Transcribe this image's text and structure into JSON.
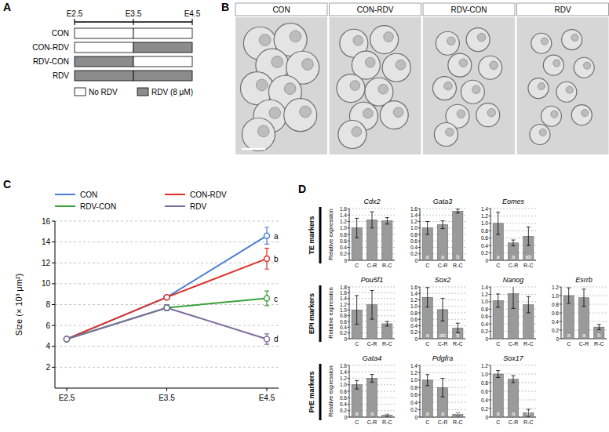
{
  "panel_labels": [
    "A",
    "B",
    "C",
    "D"
  ],
  "schedule": {
    "timepoints": [
      "E2.5",
      "E3.5",
      "E4.5"
    ],
    "rows": [
      {
        "label": "CON",
        "treatment": [
          false,
          false
        ]
      },
      {
        "label": "CON-RDV",
        "treatment": [
          false,
          true
        ]
      },
      {
        "label": "RDV-CON",
        "treatment": [
          true,
          false
        ]
      },
      {
        "label": "RDV",
        "treatment": [
          true,
          true
        ]
      }
    ],
    "legend": {
      "untreated": "No RDV",
      "treated": "RDV (8 μM)"
    }
  },
  "images": {
    "labels": [
      "CON",
      "CON-RDV",
      "RDV-CON",
      "RDV"
    ]
  },
  "chart_data": [
    {
      "type": "line",
      "y_label": "Size (× 10³ μm²)",
      "categories": [
        "E2.5",
        "E3.5",
        "E4.5"
      ],
      "ylim": [
        0,
        16
      ],
      "yticks": [
        2,
        4,
        6,
        8,
        10,
        12,
        14,
        16
      ],
      "grid": true,
      "legend": "top",
      "marker": "circle",
      "series": [
        {
          "name": "CON",
          "color": "#4a7fd4",
          "values": [
            4.7,
            8.7,
            14.6
          ],
          "errors": [
            0,
            0.15,
            0.8
          ],
          "annotations": [
            null,
            null,
            "a"
          ]
        },
        {
          "name": "CON-RDV",
          "color": "#e0302a",
          "values": [
            4.7,
            8.7,
            12.4
          ],
          "errors": [
            0,
            0.15,
            1.0
          ],
          "annotations": [
            null,
            null,
            "b"
          ]
        },
        {
          "name": "RDV-CON",
          "color": "#3aa33a",
          "values": [
            4.7,
            7.7,
            8.6
          ],
          "errors": [
            0,
            0.3,
            0.7
          ],
          "annotations": [
            null,
            null,
            "c"
          ]
        },
        {
          "name": "RDV",
          "color": "#7b6f9e",
          "values": [
            4.7,
            7.7,
            4.7
          ],
          "errors": [
            0,
            0.3,
            0.5
          ],
          "annotations": [
            null,
            null,
            "d"
          ]
        }
      ]
    },
    {
      "type": "bar",
      "group": "TE markers",
      "title": "Cdx2",
      "y_label": "Relative expression",
      "categories": [
        "C",
        "C-R",
        "R-C"
      ],
      "values": [
        1.0,
        1.25,
        1.22
      ],
      "errors": [
        0.3,
        0.25,
        0.1
      ],
      "color": "#9a9a9a",
      "grid": true,
      "ylim": [
        0,
        1.6
      ],
      "yticks": [
        0,
        0.2,
        0.4,
        0.6,
        0.8,
        {
          "value": 1,
          "label": "1.0"
        },
        1.2,
        1.4,
        1.6
      ]
    },
    {
      "type": "bar",
      "group": "TE markers",
      "title": "Gata3",
      "categories": [
        "C",
        "C-R",
        "R-C"
      ],
      "values": [
        1.0,
        1.1,
        1.52
      ],
      "errors": [
        0.2,
        0.12,
        0.06
      ],
      "annotations": [
        "a",
        "a",
        "b"
      ],
      "color": "#9a9a9a",
      "grid": true,
      "ylim": [
        0,
        1.6
      ],
      "yticks": [
        0,
        0.2,
        0.4,
        0.6,
        0.8,
        {
          "value": 1,
          "label": "1.0"
        },
        1.2,
        1.4,
        1.6
      ]
    },
    {
      "type": "bar",
      "group": "TE markers",
      "title": "Eomes",
      "categories": [
        "C",
        "C-R",
        "R-C"
      ],
      "values": [
        1.0,
        0.47,
        0.65
      ],
      "errors": [
        0.3,
        0.08,
        0.25
      ],
      "annotations": [
        "a",
        "a",
        "ab"
      ],
      "color": "#9a9a9a",
      "grid": true,
      "ylim": [
        0,
        1.4
      ],
      "yticks": [
        0,
        0.2,
        0.4,
        0.6,
        0.8,
        {
          "value": 1,
          "label": "1.0"
        },
        1.2,
        1.4
      ]
    },
    {
      "type": "bar",
      "group": "EPI markers",
      "title": "Pou5f1",
      "y_label": "Relative expression",
      "categories": [
        "C",
        "C-R",
        "R-C"
      ],
      "values": [
        1.0,
        1.18,
        0.52
      ],
      "errors": [
        0.5,
        0.5,
        0.08
      ],
      "color": "#9a9a9a",
      "grid": true,
      "ylim": [
        0,
        1.8
      ],
      "yticks": [
        0,
        0.2,
        0.4,
        0.6,
        0.8,
        {
          "value": 1,
          "label": "1.0"
        },
        1.2,
        1.4,
        1.6,
        1.8
      ]
    },
    {
      "type": "bar",
      "group": "EPI markers",
      "title": "Sox2",
      "categories": [
        "C",
        "C-R",
        "R-C"
      ],
      "values": [
        1.28,
        0.9,
        0.33
      ],
      "errors": [
        0.3,
        0.35,
        0.15
      ],
      "annotations": [
        "a",
        "ab",
        "b"
      ],
      "color": "#9a9a9a",
      "grid": true,
      "ylim": [
        0,
        1.6
      ],
      "yticks": [
        0,
        0.2,
        0.4,
        0.6,
        0.8,
        {
          "value": 1,
          "label": "1.0"
        },
        1.2,
        1.4,
        1.6
      ]
    },
    {
      "type": "bar",
      "group": "EPI markers",
      "title": "Nanog",
      "categories": [
        "C",
        "C-R",
        "R-C"
      ],
      "values": [
        1.03,
        1.22,
        0.92
      ],
      "errors": [
        0.18,
        0.4,
        0.22
      ],
      "color": "#9a9a9a",
      "grid": true,
      "ylim": [
        0,
        1.4
      ],
      "yticks": [
        0,
        0.2,
        0.4,
        0.6,
        0.8,
        {
          "value": 1,
          "label": "1.0"
        },
        1.2,
        1.4
      ]
    },
    {
      "type": "bar",
      "group": "EPI markers",
      "title": "Esrrb",
      "categories": [
        "C",
        "C-R",
        "R-C"
      ],
      "values": [
        1.0,
        0.95,
        0.27
      ],
      "errors": [
        0.18,
        0.2,
        0.06
      ],
      "annotations": [
        "a",
        "a",
        "b"
      ],
      "color": "#9a9a9a",
      "grid": true,
      "ylim": [
        0,
        1.2
      ],
      "yticks": [
        0,
        0.2,
        0.4,
        0.6,
        0.8,
        {
          "value": 1,
          "label": "1.0"
        },
        1.2
      ]
    },
    {
      "type": "bar",
      "group": "PrE markers",
      "title": "Gata4",
      "y_label": "Relative expression",
      "categories": [
        "C",
        "C-R",
        "R-C"
      ],
      "values": [
        1.0,
        1.2,
        0.06
      ],
      "errors": [
        0.13,
        0.12,
        0.03
      ],
      "annotations": [
        "a",
        "a",
        "b"
      ],
      "color": "#9a9a9a",
      "grid": true,
      "ylim": [
        0,
        1.6
      ],
      "yticks": [
        0,
        0.2,
        0.4,
        0.6,
        0.8,
        {
          "value": 1,
          "label": "1.0"
        },
        1.2,
        1.4,
        1.6
      ]
    },
    {
      "type": "bar",
      "group": "PrE markers",
      "title": "Pdgfra",
      "categories": [
        "C",
        "C-R",
        "R-C"
      ],
      "values": [
        1.0,
        0.8,
        0.08
      ],
      "errors": [
        0.15,
        0.25,
        0.04
      ],
      "annotations": [
        "a",
        "a",
        "b"
      ],
      "color": "#9a9a9a",
      "grid": true,
      "ylim": [
        0,
        1.4
      ],
      "yticks": [
        0,
        0.2,
        0.4,
        0.6,
        0.8,
        {
          "value": 1,
          "label": "1.0"
        },
        1.2,
        1.4
      ]
    },
    {
      "type": "bar",
      "group": "PrE markers",
      "title": "Sox17",
      "categories": [
        "C",
        "C-R",
        "R-C"
      ],
      "values": [
        1.0,
        0.88,
        0.1
      ],
      "errors": [
        0.08,
        0.08,
        0.08
      ],
      "annotations": [
        "a",
        "a",
        "b"
      ],
      "color": "#9a9a9a",
      "grid": true,
      "ylim": [
        0,
        1.2
      ],
      "yticks": [
        0,
        0.2,
        0.4,
        0.6,
        0.8,
        {
          "value": 1,
          "label": "1.0"
        },
        1.2
      ]
    }
  ]
}
